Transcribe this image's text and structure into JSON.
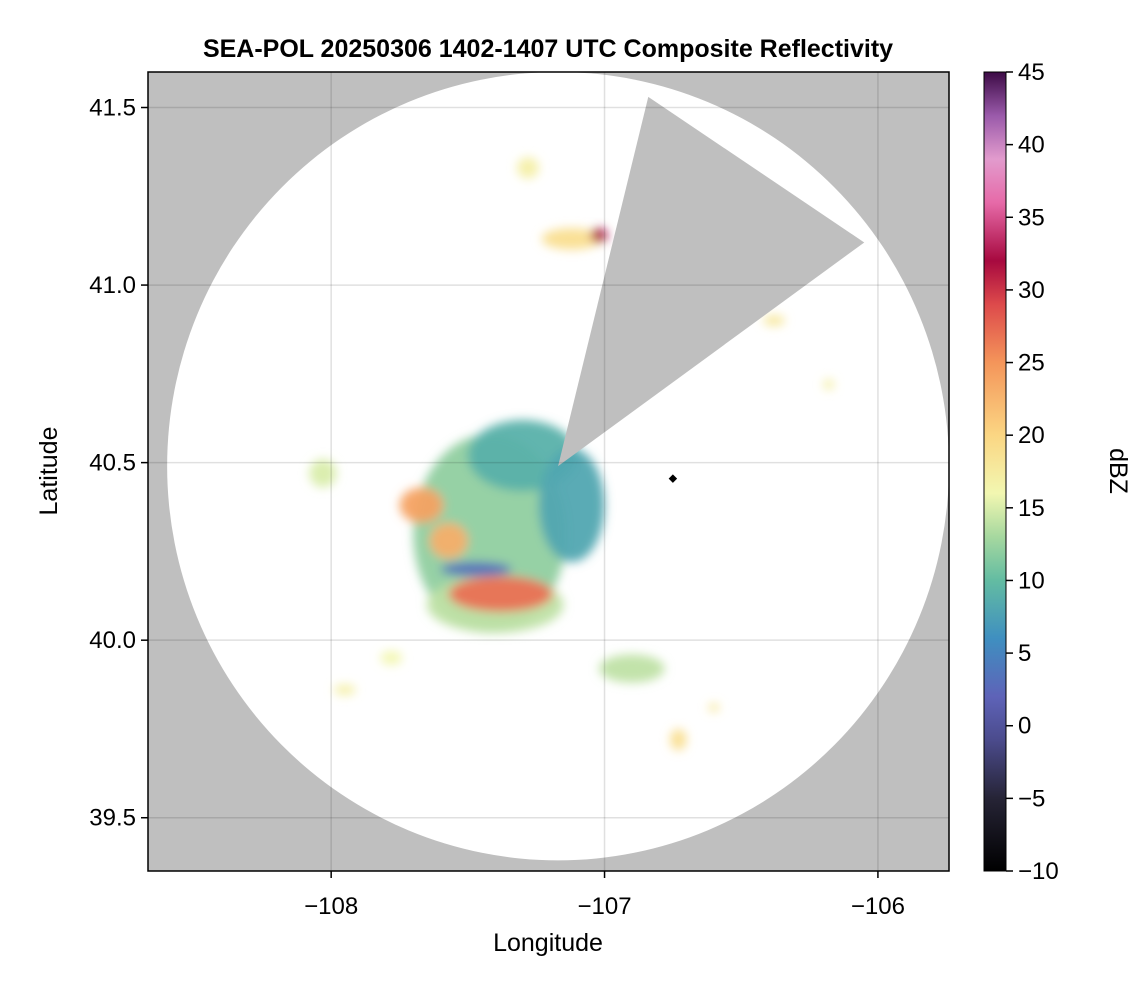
{
  "chart_data": {
    "type": "heatmap",
    "title": "SEA-POL 20250306 1402-1407 UTC Composite Reflectivity",
    "xlabel": "Longitude",
    "ylabel": "Latitude",
    "xlim": [
      -108.67,
      -105.74
    ],
    "ylim": [
      39.35,
      41.6
    ],
    "x_ticks": [
      -108,
      -107,
      -106
    ],
    "x_tick_labels": [
      "−108",
      "−107",
      "−106"
    ],
    "y_ticks": [
      39.5,
      40.0,
      40.5,
      41.0,
      41.5
    ],
    "y_tick_labels": [
      "39.5",
      "40.0",
      "40.5",
      "41.0",
      "41.5"
    ],
    "grid": true,
    "radar": {
      "center_lon": -107.17,
      "center_lat": 40.49,
      "range_deg_lat": 1.11,
      "range_deg_lon": 1.43,
      "blocked_sector_lon_lat": [
        [
          -107.17,
          40.49
        ],
        [
          -106.84,
          41.53
        ],
        [
          -106.05,
          41.12
        ]
      ],
      "marker_lon": -106.75,
      "marker_lat": 40.455,
      "coverage_color": "#ffffff",
      "no_data_color": "#bfbfbf"
    },
    "echoes": [
      {
        "name": "main-echo-body",
        "lon": -107.42,
        "lat": 40.3,
        "rlon": 0.28,
        "rlat": 0.28,
        "dbz": 12
      },
      {
        "name": "main-echo-north",
        "lon": -107.3,
        "lat": 40.52,
        "rlon": 0.2,
        "rlat": 0.1,
        "dbz": 9
      },
      {
        "name": "main-echo-lobe-east",
        "lon": -107.12,
        "lat": 40.38,
        "rlon": 0.12,
        "rlat": 0.16,
        "dbz": 8
      },
      {
        "name": "main-echo-south",
        "lon": -107.4,
        "lat": 40.1,
        "rlon": 0.25,
        "rlat": 0.08,
        "dbz": 14
      },
      {
        "name": "core-south",
        "lon": -107.38,
        "lat": 40.13,
        "rlon": 0.19,
        "rlat": 0.05,
        "dbz": 27
      },
      {
        "name": "core-west-upper",
        "lon": -107.67,
        "lat": 40.38,
        "rlon": 0.08,
        "rlat": 0.05,
        "dbz": 24
      },
      {
        "name": "core-west-lower",
        "lon": -107.57,
        "lat": 40.28,
        "rlon": 0.07,
        "rlat": 0.05,
        "dbz": 23
      },
      {
        "name": "low-band",
        "lon": -107.47,
        "lat": 40.2,
        "rlon": 0.13,
        "rlat": 0.02,
        "dbz": 3
      },
      {
        "name": "echo-north-cell",
        "lon": -107.28,
        "lat": 41.33,
        "rlon": 0.04,
        "rlat": 0.03,
        "dbz": 17
      },
      {
        "name": "echo-north-band",
        "lon": -107.12,
        "lat": 41.13,
        "rlon": 0.11,
        "rlat": 0.03,
        "dbz": 19
      },
      {
        "name": "echo-north-core",
        "lon": -107.02,
        "lat": 41.14,
        "rlon": 0.03,
        "rlat": 0.02,
        "dbz": 32
      },
      {
        "name": "echo-west-cell",
        "lon": -108.03,
        "lat": 40.47,
        "rlon": 0.05,
        "rlat": 0.04,
        "dbz": 15
      },
      {
        "name": "echo-southeast-band",
        "lon": -106.9,
        "lat": 39.92,
        "rlon": 0.12,
        "rlat": 0.04,
        "dbz": 14
      },
      {
        "name": "echo-southeast-cell",
        "lon": -106.73,
        "lat": 39.72,
        "rlon": 0.03,
        "rlat": 0.03,
        "dbz": 19
      },
      {
        "name": "echo-southwest-cell",
        "lon": -107.78,
        "lat": 39.95,
        "rlon": 0.04,
        "rlat": 0.02,
        "dbz": 16
      },
      {
        "name": "echo-far-southwest-cell",
        "lon": -107.95,
        "lat": 39.86,
        "rlon": 0.04,
        "rlat": 0.015,
        "dbz": 17
      },
      {
        "name": "echo-east-cell",
        "lon": -106.38,
        "lat": 40.9,
        "rlon": 0.04,
        "rlat": 0.015,
        "dbz": 18
      },
      {
        "name": "echo-far-east-cell",
        "lon": -106.18,
        "lat": 40.72,
        "rlon": 0.02,
        "rlat": 0.015,
        "dbz": 17
      },
      {
        "name": "echo-southeast-small",
        "lon": -106.6,
        "lat": 39.81,
        "rlon": 0.02,
        "rlat": 0.012,
        "dbz": 18
      }
    ],
    "colorbar": {
      "label": "dBZ",
      "vmin": -10,
      "vmax": 45,
      "ticks": [
        -10,
        -5,
        0,
        5,
        10,
        15,
        20,
        25,
        30,
        35,
        40,
        45
      ],
      "tick_labels": [
        "−10",
        "−5",
        "0",
        "5",
        "10",
        "15",
        "20",
        "25",
        "30",
        "35",
        "40",
        "45"
      ],
      "stops": [
        {
          "v": -10,
          "c": "#000000"
        },
        {
          "v": -5,
          "c": "#262436"
        },
        {
          "v": -1,
          "c": "#4b4b8c"
        },
        {
          "v": 2,
          "c": "#5e63b8"
        },
        {
          "v": 6,
          "c": "#3f8fc0"
        },
        {
          "v": 10,
          "c": "#63bca2"
        },
        {
          "v": 13,
          "c": "#a6d89f"
        },
        {
          "v": 16,
          "c": "#f2f7b1"
        },
        {
          "v": 20,
          "c": "#fbd683"
        },
        {
          "v": 25,
          "c": "#f4955a"
        },
        {
          "v": 29,
          "c": "#dd4a4b"
        },
        {
          "v": 32,
          "c": "#a7093f"
        },
        {
          "v": 36,
          "c": "#e66aa8"
        },
        {
          "v": 39,
          "c": "#e29bcd"
        },
        {
          "v": 42,
          "c": "#9a5aaa"
        },
        {
          "v": 45,
          "c": "#3d0b46"
        }
      ]
    }
  }
}
